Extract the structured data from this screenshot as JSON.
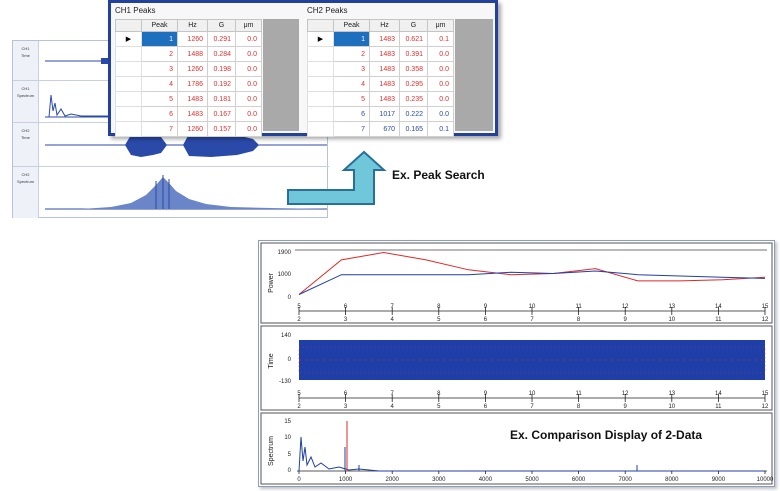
{
  "peaks_dialog": {
    "ch1_title": "CH1 Peaks",
    "ch2_title": "CH2 Peaks",
    "columns": [
      "Peak",
      "Hz",
      "G",
      "μm"
    ],
    "ch1_rows": [
      {
        "peak": "1",
        "hz": "1260",
        "g": "0.291",
        "um": "0.0"
      },
      {
        "peak": "2",
        "hz": "1488",
        "g": "0.284",
        "um": "0.0"
      },
      {
        "peak": "3",
        "hz": "1260",
        "g": "0.198",
        "um": "0.0"
      },
      {
        "peak": "4",
        "hz": "1786",
        "g": "0.192",
        "um": "0.0"
      },
      {
        "peak": "5",
        "hz": "1483",
        "g": "0.181",
        "um": "0.0"
      },
      {
        "peak": "6",
        "hz": "1483",
        "g": "0.167",
        "um": "0.0"
      },
      {
        "peak": "7",
        "hz": "1260",
        "g": "0.157",
        "um": "0.0"
      }
    ],
    "ch2_rows": [
      {
        "peak": "1",
        "hz": "1483",
        "g": "0.621",
        "um": "0.1"
      },
      {
        "peak": "2",
        "hz": "1483",
        "g": "0.391",
        "um": "0.0"
      },
      {
        "peak": "3",
        "hz": "1483",
        "g": "0.358",
        "um": "0.0"
      },
      {
        "peak": "4",
        "hz": "1483",
        "g": "0.295",
        "um": "0.0"
      },
      {
        "peak": "5",
        "hz": "1483",
        "g": "0.235",
        "um": "0.0"
      },
      {
        "peak": "6",
        "hz": "1017",
        "g": "0.222",
        "um": "0.0"
      },
      {
        "peak": "7",
        "hz": "670",
        "g": "0.165",
        "um": "0.1"
      }
    ]
  },
  "captions": {
    "peak_search": "Ex.  Peak Search",
    "comparison": "Ex.  Comparison Display of 2-Data"
  },
  "background_app": {
    "rows": [
      {
        "label": "CH1",
        "sub": "Time"
      },
      {
        "label": "CH1",
        "sub": "Spectrum"
      },
      {
        "label": "CH2",
        "sub": "Time"
      },
      {
        "label": "CH2",
        "sub": "Spectrum"
      }
    ]
  },
  "comparison": {
    "power": {
      "label": "Power",
      "ymax": "1900",
      "ymid": "1000",
      "ymin": "0"
    },
    "time": {
      "label": "Time",
      "ymax": "140",
      "ymid": "0",
      "ymin": "-130"
    },
    "spectrum": {
      "label": "Spectrum",
      "ymax": "15",
      "ymid": "10",
      "ylow": "5",
      "ymin": "0"
    },
    "top_ticks": [
      "5",
      "6",
      "7",
      "8",
      "9",
      "10",
      "11",
      "12",
      "13",
      "14",
      "15"
    ],
    "bottom_ticks": [
      "2",
      "3",
      "4",
      "5",
      "6",
      "7",
      "8",
      "9",
      "10",
      "11",
      "12"
    ],
    "freq_ticks": [
      "0",
      "1000",
      "2000",
      "3000",
      "4000",
      "5000",
      "6000",
      "7000",
      "8000",
      "9000",
      "10000"
    ],
    "colors": {
      "ch1": "#e02828",
      "ch2": "#1f3fa8"
    }
  },
  "chart_data": {
    "type": "line",
    "series": [
      {
        "values": [
          100,
          1500,
          1800,
          1500,
          1100,
          900,
          950,
          1150,
          650,
          650,
          700,
          800
        ]
      },
      {
        "values": [
          100,
          900,
          900,
          900,
          900,
          1000,
          950,
          1050,
          900,
          850,
          800,
          750
        ]
      }
    ]
  }
}
